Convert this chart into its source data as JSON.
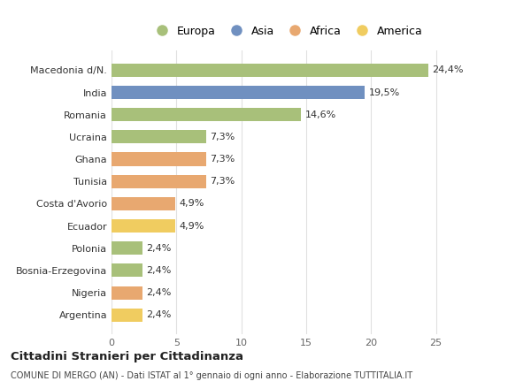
{
  "categories": [
    "Macedonia d/N.",
    "India",
    "Romania",
    "Ucraina",
    "Ghana",
    "Tunisia",
    "Costa d'Avorio",
    "Ecuador",
    "Polonia",
    "Bosnia-Erzegovina",
    "Nigeria",
    "Argentina"
  ],
  "values": [
    24.4,
    19.5,
    14.6,
    7.3,
    7.3,
    7.3,
    4.9,
    4.9,
    2.4,
    2.4,
    2.4,
    2.4
  ],
  "labels": [
    "24,4%",
    "19,5%",
    "14,6%",
    "7,3%",
    "7,3%",
    "7,3%",
    "4,9%",
    "4,9%",
    "2,4%",
    "2,4%",
    "2,4%",
    "2,4%"
  ],
  "colors": [
    "#a8c07a",
    "#7090c0",
    "#a8c07a",
    "#a8c07a",
    "#e8a870",
    "#e8a870",
    "#e8a870",
    "#f0cc60",
    "#a8c07a",
    "#a8c07a",
    "#e8a870",
    "#f0cc60"
  ],
  "legend_labels": [
    "Europa",
    "Asia",
    "Africa",
    "America"
  ],
  "legend_colors": [
    "#a8c07a",
    "#7090c0",
    "#e8a870",
    "#f0cc60"
  ],
  "title": "Cittadini Stranieri per Cittadinanza",
  "subtitle": "COMUNE DI MERGO (AN) - Dati ISTAT al 1° gennaio di ogni anno - Elaborazione TUTTITALIA.IT",
  "xlim": [
    0,
    27
  ],
  "xticks": [
    0,
    5,
    10,
    15,
    20,
    25
  ],
  "background_color": "#ffffff",
  "grid_color": "#e0e0e0"
}
